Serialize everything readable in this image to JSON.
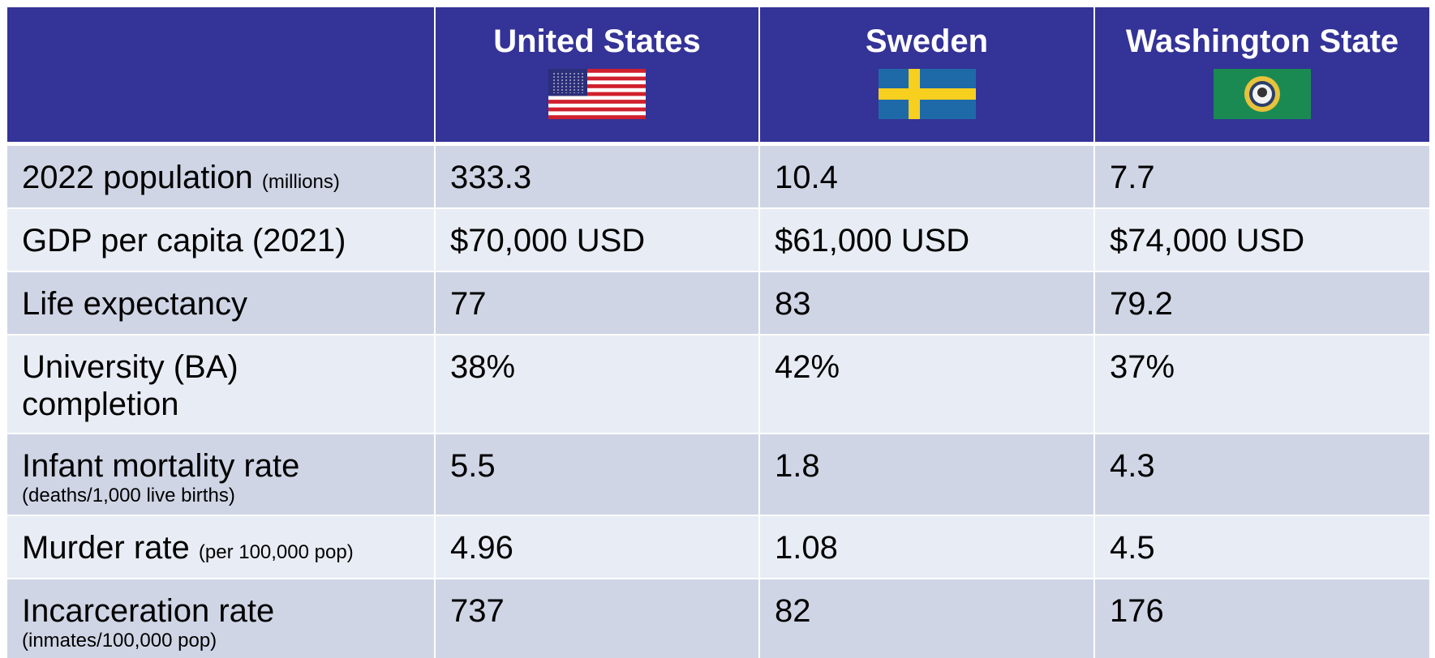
{
  "header": {
    "columns": [
      "United States",
      "Sweden",
      "Washington State"
    ]
  },
  "table": {
    "rows": [
      {
        "label": "2022 population",
        "note": "(millions)",
        "values": [
          "333.3",
          "10.4",
          "7.7"
        ]
      },
      {
        "label": "GDP per capita (2021)",
        "values": [
          "$70,000 USD",
          "$61,000 USD",
          "$74,000 USD"
        ]
      },
      {
        "label": "Life expectancy",
        "values": [
          "77",
          "83",
          "79.2"
        ]
      },
      {
        "label": "University (BA) completion",
        "values": [
          "38%",
          "42%",
          "37%"
        ]
      },
      {
        "label": "Infant mortality rate",
        "note": "(deaths/1,000 live births)",
        "values": [
          "5.5",
          "1.8",
          "4.3"
        ]
      },
      {
        "label": "Murder rate",
        "note": "(per 100,000 pop)",
        "values": [
          "4.96",
          "1.08",
          "4.5"
        ]
      },
      {
        "label": "Incarceration rate",
        "note": "(inmates/100,000 pop)",
        "values": [
          "737",
          "82",
          "176"
        ]
      }
    ]
  }
}
